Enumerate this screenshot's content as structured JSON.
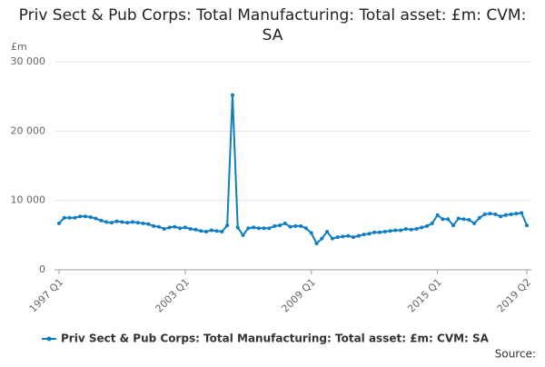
{
  "chart_data": {
    "type": "line",
    "title": "Priv Sect & Pub Corps: Total Manufacturing: Total asset: £m: CVM: SA",
    "y_unit": "£m",
    "source": "Source:",
    "categories": [
      "1997 Q1",
      null,
      null,
      null,
      null,
      null,
      null,
      null,
      null,
      null,
      null,
      null,
      null,
      null,
      null,
      null,
      null,
      null,
      null,
      null,
      null,
      null,
      null,
      null,
      "2003 Q1",
      null,
      null,
      null,
      null,
      null,
      null,
      null,
      null,
      null,
      null,
      null,
      null,
      null,
      null,
      null,
      null,
      null,
      null,
      null,
      null,
      null,
      null,
      null,
      "2009 Q1",
      null,
      null,
      null,
      null,
      null,
      null,
      null,
      null,
      null,
      null,
      null,
      null,
      null,
      null,
      null,
      null,
      null,
      null,
      null,
      null,
      null,
      null,
      null,
      "2015 Q1",
      null,
      null,
      null,
      null,
      null,
      null,
      null,
      null,
      null,
      null,
      null,
      null,
      null,
      null,
      null,
      null,
      "2019 Q2"
    ],
    "series": [
      {
        "name": "Priv Sect & Pub Corps: Total Manufacturing: Total asset: £m: CVM: SA",
        "color": "#0e7dc2",
        "values": [
          6700,
          7500,
          7500,
          7500,
          7700,
          7700,
          7600,
          7400,
          7100,
          6900,
          6800,
          7000,
          6900,
          6800,
          6900,
          6800,
          6700,
          6600,
          6300,
          6200,
          5900,
          6100,
          6200,
          6000,
          6100,
          5900,
          5800,
          5600,
          5500,
          5700,
          5600,
          5500,
          6400,
          25200,
          6100,
          5000,
          6000,
          6100,
          6000,
          6000,
          6000,
          6300,
          6400,
          6700,
          6200,
          6300,
          6300,
          6000,
          5300,
          3800,
          4500,
          5500,
          4500,
          4700,
          4800,
          4900,
          4700,
          4900,
          5100,
          5200,
          5400,
          5400,
          5500,
          5600,
          5700,
          5700,
          5900,
          5800,
          5900,
          6100,
          6300,
          6700,
          7900,
          7300,
          7300,
          6400,
          7400,
          7300,
          7200,
          6700,
          7500,
          8000,
          8100,
          8000,
          7700,
          7900,
          8000,
          8100,
          8200,
          6400
        ]
      }
    ],
    "ylim": [
      0,
      30000
    ],
    "yticks": [
      0,
      {
        "value": 10000,
        "label": "10 000"
      },
      {
        "value": 20000,
        "label": "20 000"
      },
      {
        "value": 30000,
        "label": "30 000"
      }
    ],
    "grid": true
  }
}
